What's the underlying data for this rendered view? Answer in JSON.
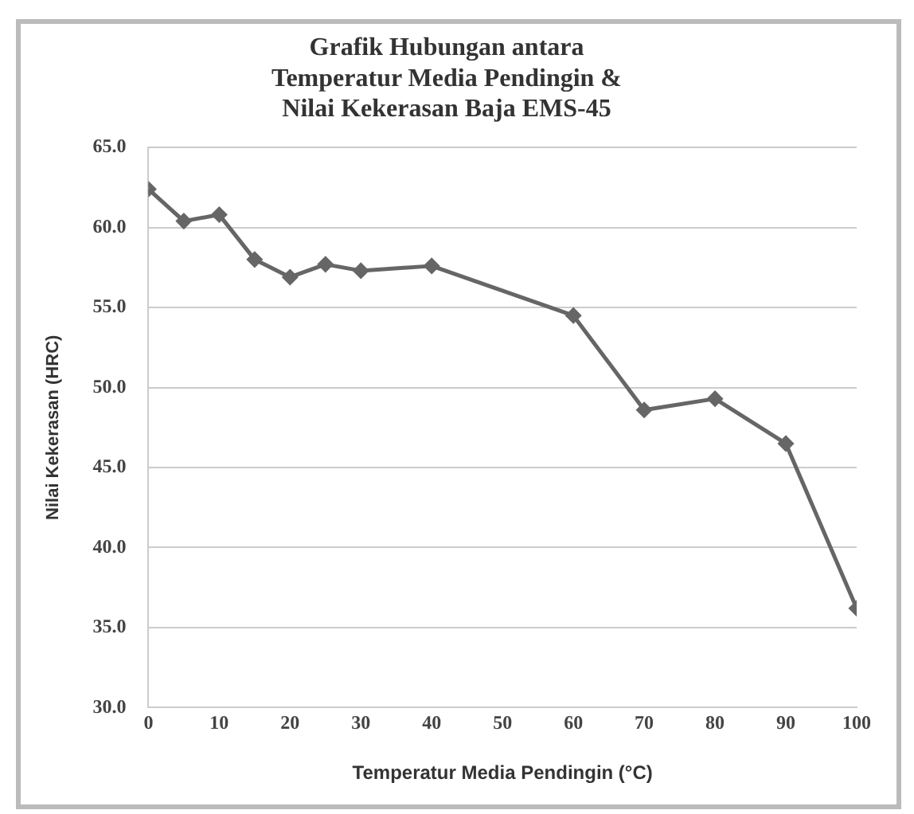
{
  "chart_data": {
    "type": "line",
    "title": [
      "Grafik Hubungan antara",
      "Temperatur Media Pendingin &",
      "Nilai Kekerasan Baja EMS-45"
    ],
    "xlabel": "Temperatur Media Pendingin (°C)",
    "ylabel": "Nilai Kekerasan (HRC)",
    "x": [
      0,
      5,
      10,
      15,
      20,
      25,
      30,
      40,
      60,
      70,
      80,
      90,
      100
    ],
    "series": [
      {
        "color": "#666666",
        "values": [
          62.4,
          60.4,
          60.8,
          58.0,
          56.9,
          57.7,
          57.3,
          57.6,
          54.5,
          48.6,
          49.3,
          46.5,
          36.2
        ]
      }
    ],
    "xlim": [
      0,
      100
    ],
    "xticks": [
      0,
      10,
      20,
      30,
      40,
      50,
      60,
      70,
      80,
      90,
      100
    ],
    "ylim": [
      30,
      65
    ],
    "yticks": [
      {
        "value": 30,
        "label": "30.0"
      },
      {
        "value": 35,
        "label": "35.0"
      },
      {
        "value": 40,
        "label": "40.0"
      },
      {
        "value": 45,
        "label": "45.0"
      },
      {
        "value": 50,
        "label": "50.0"
      },
      {
        "value": 55,
        "label": "55.0"
      },
      {
        "value": 60,
        "label": "60.0"
      },
      {
        "value": 65,
        "label": "65.0"
      }
    ],
    "grid": "y",
    "legend": false,
    "marker": "diamond",
    "line_style": "solid"
  }
}
